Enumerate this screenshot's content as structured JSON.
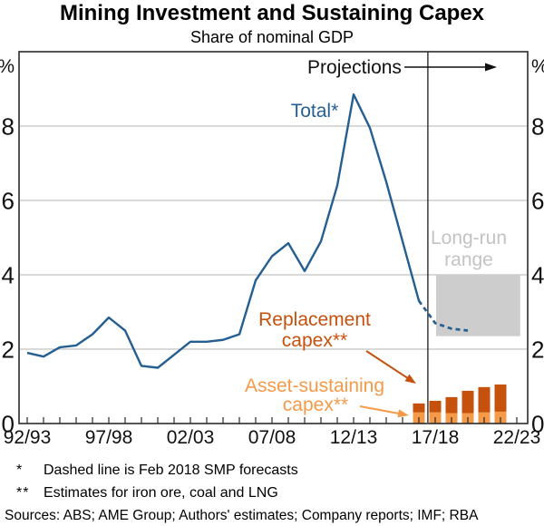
{
  "header": {
    "title": "Mining Investment and Sustaining Capex",
    "subtitle": "Share of nominal GDP"
  },
  "chart_data": {
    "type": "line",
    "title": "Mining Investment and Sustaining Capex",
    "subtitle": "Share of nominal GDP",
    "ylabel_left": "%",
    "ylabel_right": "%",
    "ylim": [
      0,
      10
    ],
    "y_ticks": [
      0,
      2,
      4,
      6,
      8
    ],
    "grid": "horizontal",
    "x_start_year": "92/93",
    "x_end_year": "22/23",
    "x_tick_labels": [
      "92/93",
      "97/98",
      "02/03",
      "07/08",
      "12/13",
      "17/18",
      "22/23"
    ],
    "line_series": {
      "name": "Total*",
      "years": [
        "92/93",
        "93/94",
        "94/95",
        "95/96",
        "96/97",
        "97/98",
        "98/99",
        "99/00",
        "00/01",
        "01/02",
        "02/03",
        "03/04",
        "04/05",
        "05/06",
        "06/07",
        "07/08",
        "08/09",
        "09/10",
        "10/11",
        "11/12",
        "12/13",
        "13/14",
        "14/15",
        "15/16",
        "16/17"
      ],
      "values": [
        1.9,
        1.8,
        2.05,
        2.1,
        2.4,
        2.85,
        2.5,
        1.55,
        1.5,
        1.85,
        2.2,
        2.2,
        2.25,
        2.4,
        3.85,
        4.5,
        4.85,
        4.1,
        4.9,
        6.4,
        8.85,
        7.95,
        6.5,
        4.9,
        3.3
      ],
      "forecast": {
        "style": "dashed",
        "years": [
          "16/17",
          "17/18",
          "18/19",
          "19/20"
        ],
        "values": [
          3.3,
          2.7,
          2.55,
          2.5
        ]
      }
    },
    "bar_series": {
      "categories": [
        "16/17",
        "17/18",
        "18/19",
        "19/20",
        "20/21",
        "21/22"
      ],
      "series": [
        {
          "name": "Asset-sustaining capex**",
          "values": [
            0.3,
            0.3,
            0.28,
            0.28,
            0.3,
            0.32
          ]
        },
        {
          "name": "Replacement capex**",
          "values": [
            0.24,
            0.31,
            0.43,
            0.6,
            0.68,
            0.73
          ]
        }
      ]
    },
    "long_run_range": {
      "label": "Long-run range",
      "low": 2.35,
      "high": 4.0,
      "from": "17/18",
      "to": "22/23"
    },
    "projections": {
      "label": "Projections",
      "divider_after": "16/17"
    },
    "annotations": {
      "total_label": "Total*",
      "projections_label": "Projections",
      "replacement_line1": "Replacement",
      "replacement_line2": "capex**",
      "asset_line1": "Asset-sustaining",
      "asset_line2": "capex**",
      "longrun_line1": "Long-run",
      "longrun_line2": "range"
    },
    "colors": {
      "total_line": "#255E91",
      "replacement_bar": "#C5510D",
      "asset_sustaining_bar": "#F59A49",
      "long_run_box": "#CDCDCD",
      "long_run_text": "#C3C3C3",
      "grid": "#B3B3B3",
      "frame": "#2B2B2B",
      "text": "#111111"
    }
  },
  "footnotes": [
    {
      "marker": "*",
      "text": "Dashed line is Feb 2018 SMP forecasts"
    },
    {
      "marker": "**",
      "text": "Estimates for iron ore, coal and LNG"
    }
  ],
  "sources": "Sources: ABS; AME Group; Authors' estimates; Company reports; IMF; RBA"
}
